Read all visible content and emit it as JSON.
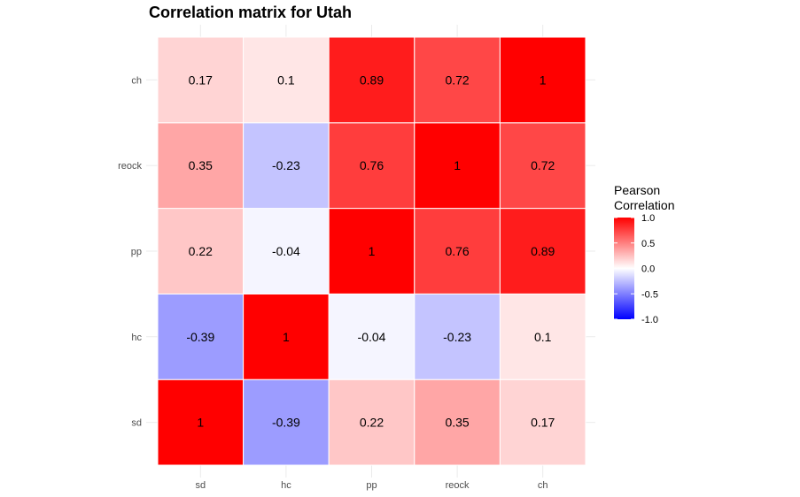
{
  "chart_data": {
    "type": "heatmap",
    "title": "Correlation matrix for Utah",
    "x_categories": [
      "sd",
      "hc",
      "pp",
      "reock",
      "ch"
    ],
    "y_categories": [
      "sd",
      "hc",
      "pp",
      "reock",
      "ch"
    ],
    "matrix": [
      [
        "1",
        "-0.39",
        "0.22",
        "0.35",
        "0.17"
      ],
      [
        "-0.39",
        "1",
        "-0.04",
        "-0.23",
        "0.1"
      ],
      [
        "0.22",
        "-0.04",
        "1",
        "0.76",
        "0.89"
      ],
      [
        "0.35",
        "-0.23",
        "0.76",
        "1",
        "0.72"
      ],
      [
        "0.17",
        "0.1",
        "0.89",
        "0.72",
        "1"
      ]
    ],
    "legend": {
      "title_lines": [
        "Pearson",
        "Correlation"
      ],
      "ticks": [
        "1.0",
        "0.5",
        "0.0",
        "-0.5",
        "-1.0"
      ],
      "tick_values": [
        1.0,
        0.5,
        0.0,
        -0.5,
        -1.0
      ],
      "limits": [
        -1,
        1
      ],
      "placement": "right"
    },
    "colors": {
      "low": "#0000ff",
      "mid": "#ffffff",
      "high": "#ff0000"
    },
    "grid": true
  }
}
